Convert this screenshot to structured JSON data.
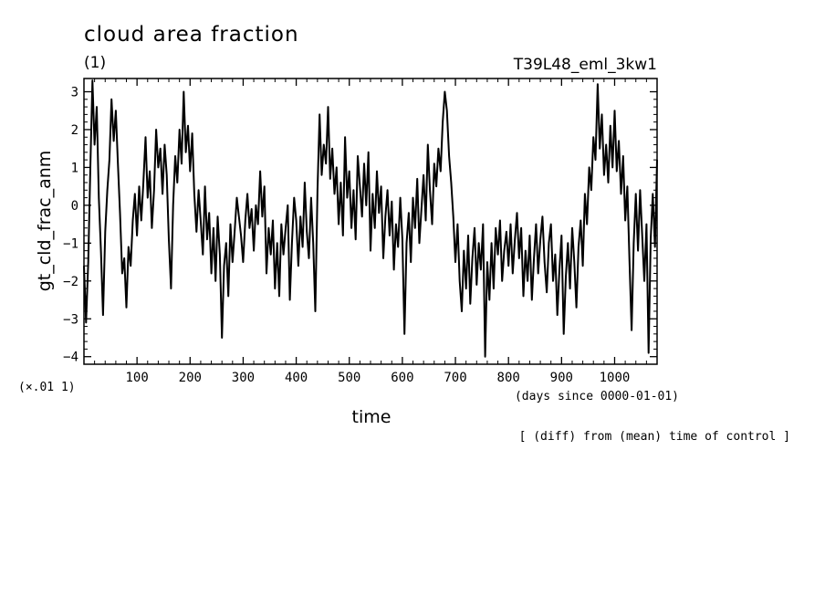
{
  "chart_data": {
    "type": "line",
    "title": "cloud area fraction",
    "subtitle_left": "(1)",
    "subtitle_right": "T39L48_eml_3kw1",
    "xlabel": "time",
    "xunits": "(days since 0000-01-01)",
    "ylabel": "gt_cld_frac_anm",
    "yscale_note": "(×.01 1)",
    "footnote": "[ (diff) from (mean) time of control ]",
    "xlim": [
      0,
      1080
    ],
    "ylim": [
      -4.2,
      3.35
    ],
    "xticks": [
      100,
      200,
      300,
      400,
      500,
      600,
      700,
      800,
      900,
      1000
    ],
    "yticks": [
      3,
      2,
      1,
      0,
      -1,
      -2,
      -3,
      -4
    ],
    "grid": false,
    "series": [
      {
        "color": "#000000",
        "points": [
          [
            0,
            -1.6
          ],
          [
            4,
            -3.1
          ],
          [
            8,
            -1.5
          ],
          [
            12,
            1.0
          ],
          [
            16,
            3.3
          ],
          [
            20,
            1.6
          ],
          [
            24,
            2.6
          ],
          [
            28,
            0.2
          ],
          [
            32,
            -1.2
          ],
          [
            36,
            -2.9
          ],
          [
            40,
            -0.7
          ],
          [
            44,
            0.4
          ],
          [
            48,
            1.2
          ],
          [
            52,
            2.8
          ],
          [
            56,
            1.7
          ],
          [
            60,
            2.5
          ],
          [
            64,
            1.1
          ],
          [
            68,
            -0.2
          ],
          [
            72,
            -1.8
          ],
          [
            76,
            -1.4
          ],
          [
            80,
            -2.7
          ],
          [
            84,
            -1.1
          ],
          [
            88,
            -1.6
          ],
          [
            92,
            -0.4
          ],
          [
            96,
            0.3
          ],
          [
            100,
            -0.8
          ],
          [
            104,
            0.5
          ],
          [
            108,
            -0.4
          ],
          [
            112,
            0.6
          ],
          [
            116,
            1.8
          ],
          [
            120,
            0.2
          ],
          [
            124,
            0.9
          ],
          [
            128,
            -0.6
          ],
          [
            132,
            0.4
          ],
          [
            136,
            2.0
          ],
          [
            140,
            1.0
          ],
          [
            144,
            1.5
          ],
          [
            148,
            0.3
          ],
          [
            152,
            1.6
          ],
          [
            156,
            0.8
          ],
          [
            160,
            -0.9
          ],
          [
            164,
            -2.2
          ],
          [
            168,
            0.0
          ],
          [
            172,
            1.3
          ],
          [
            176,
            0.6
          ],
          [
            180,
            2.0
          ],
          [
            184,
            1.1
          ],
          [
            188,
            3.0
          ],
          [
            192,
            1.4
          ],
          [
            196,
            2.1
          ],
          [
            200,
            0.9
          ],
          [
            204,
            1.9
          ],
          [
            208,
            0.3
          ],
          [
            212,
            -0.7
          ],
          [
            216,
            0.4
          ],
          [
            220,
            -0.4
          ],
          [
            224,
            -1.3
          ],
          [
            228,
            0.5
          ],
          [
            232,
            -0.9
          ],
          [
            236,
            -0.2
          ],
          [
            240,
            -1.8
          ],
          [
            244,
            -0.6
          ],
          [
            248,
            -2.0
          ],
          [
            252,
            -0.3
          ],
          [
            256,
            -1.3
          ],
          [
            260,
            -3.5
          ],
          [
            264,
            -1.6
          ],
          [
            268,
            -1.0
          ],
          [
            272,
            -2.4
          ],
          [
            276,
            -0.5
          ],
          [
            280,
            -1.5
          ],
          [
            284,
            -0.7
          ],
          [
            288,
            0.2
          ],
          [
            292,
            -0.3
          ],
          [
            296,
            -0.8
          ],
          [
            300,
            -1.5
          ],
          [
            304,
            -0.4
          ],
          [
            308,
            0.3
          ],
          [
            312,
            -0.6
          ],
          [
            316,
            -0.1
          ],
          [
            320,
            -1.2
          ],
          [
            324,
            0.0
          ],
          [
            328,
            -0.5
          ],
          [
            332,
            0.9
          ],
          [
            336,
            -0.3
          ],
          [
            340,
            0.5
          ],
          [
            344,
            -1.8
          ],
          [
            348,
            -0.6
          ],
          [
            352,
            -1.3
          ],
          [
            356,
            -0.4
          ],
          [
            360,
            -2.2
          ],
          [
            364,
            -1.0
          ],
          [
            368,
            -2.4
          ],
          [
            372,
            -0.5
          ],
          [
            376,
            -1.3
          ],
          [
            380,
            -0.6
          ],
          [
            384,
            0.0
          ],
          [
            388,
            -2.5
          ],
          [
            392,
            -1.0
          ],
          [
            396,
            0.2
          ],
          [
            400,
            -0.4
          ],
          [
            404,
            -1.6
          ],
          [
            408,
            -0.3
          ],
          [
            412,
            -1.1
          ],
          [
            416,
            0.6
          ],
          [
            420,
            -0.7
          ],
          [
            424,
            -1.4
          ],
          [
            428,
            0.2
          ],
          [
            432,
            -1.0
          ],
          [
            436,
            -2.8
          ],
          [
            440,
            0.4
          ],
          [
            444,
            2.4
          ],
          [
            448,
            0.8
          ],
          [
            452,
            1.6
          ],
          [
            456,
            1.1
          ],
          [
            460,
            2.6
          ],
          [
            464,
            0.7
          ],
          [
            468,
            1.5
          ],
          [
            472,
            0.3
          ],
          [
            476,
            1.0
          ],
          [
            480,
            -0.5
          ],
          [
            484,
            0.6
          ],
          [
            488,
            -0.8
          ],
          [
            492,
            1.8
          ],
          [
            496,
            0.2
          ],
          [
            500,
            0.9
          ],
          [
            504,
            -0.6
          ],
          [
            508,
            0.4
          ],
          [
            512,
            -0.9
          ],
          [
            516,
            1.3
          ],
          [
            520,
            0.5
          ],
          [
            524,
            -0.3
          ],
          [
            528,
            1.1
          ],
          [
            532,
            0.0
          ],
          [
            536,
            1.4
          ],
          [
            540,
            -1.2
          ],
          [
            544,
            0.3
          ],
          [
            548,
            -0.6
          ],
          [
            552,
            0.9
          ],
          [
            556,
            -0.2
          ],
          [
            560,
            0.5
          ],
          [
            564,
            -1.4
          ],
          [
            568,
            -0.3
          ],
          [
            572,
            0.4
          ],
          [
            576,
            -0.8
          ],
          [
            580,
            0.1
          ],
          [
            584,
            -1.7
          ],
          [
            588,
            -0.5
          ],
          [
            592,
            -1.1
          ],
          [
            596,
            0.2
          ],
          [
            600,
            -0.9
          ],
          [
            604,
            -3.4
          ],
          [
            608,
            -1.0
          ],
          [
            612,
            -0.2
          ],
          [
            616,
            -1.5
          ],
          [
            620,
            0.2
          ],
          [
            624,
            -0.6
          ],
          [
            628,
            0.7
          ],
          [
            632,
            -1.0
          ],
          [
            636,
            -0.1
          ],
          [
            640,
            0.8
          ],
          [
            644,
            -0.4
          ],
          [
            648,
            1.6
          ],
          [
            652,
            0.4
          ],
          [
            656,
            -0.5
          ],
          [
            660,
            1.1
          ],
          [
            664,
            0.5
          ],
          [
            668,
            1.5
          ],
          [
            672,
            0.9
          ],
          [
            676,
            2.2
          ],
          [
            680,
            3.0
          ],
          [
            684,
            2.5
          ],
          [
            688,
            1.3
          ],
          [
            692,
            0.6
          ],
          [
            696,
            -0.3
          ],
          [
            700,
            -1.5
          ],
          [
            704,
            -0.5
          ],
          [
            708,
            -2.0
          ],
          [
            712,
            -2.8
          ],
          [
            716,
            -1.2
          ],
          [
            720,
            -2.2
          ],
          [
            724,
            -0.8
          ],
          [
            728,
            -2.6
          ],
          [
            732,
            -1.4
          ],
          [
            736,
            -0.6
          ],
          [
            740,
            -2.1
          ],
          [
            744,
            -1.0
          ],
          [
            748,
            -1.7
          ],
          [
            752,
            -0.5
          ],
          [
            756,
            -4.0
          ],
          [
            760,
            -1.5
          ],
          [
            764,
            -2.5
          ],
          [
            768,
            -1.0
          ],
          [
            772,
            -2.2
          ],
          [
            776,
            -0.6
          ],
          [
            780,
            -1.3
          ],
          [
            784,
            -0.4
          ],
          [
            788,
            -2.0
          ],
          [
            792,
            -1.2
          ],
          [
            796,
            -0.7
          ],
          [
            800,
            -1.6
          ],
          [
            804,
            -0.5
          ],
          [
            808,
            -1.8
          ],
          [
            812,
            -0.9
          ],
          [
            816,
            -0.2
          ],
          [
            820,
            -1.4
          ],
          [
            824,
            -0.6
          ],
          [
            828,
            -2.4
          ],
          [
            832,
            -1.2
          ],
          [
            836,
            -2.0
          ],
          [
            840,
            -0.8
          ],
          [
            844,
            -2.5
          ],
          [
            848,
            -1.4
          ],
          [
            852,
            -0.5
          ],
          [
            856,
            -1.8
          ],
          [
            860,
            -0.9
          ],
          [
            864,
            -0.3
          ],
          [
            868,
            -1.5
          ],
          [
            872,
            -2.3
          ],
          [
            876,
            -1.0
          ],
          [
            880,
            -0.5
          ],
          [
            884,
            -2.0
          ],
          [
            888,
            -1.3
          ],
          [
            892,
            -2.9
          ],
          [
            896,
            -1.7
          ],
          [
            900,
            -0.8
          ],
          [
            904,
            -3.4
          ],
          [
            908,
            -1.9
          ],
          [
            912,
            -1.0
          ],
          [
            916,
            -2.2
          ],
          [
            920,
            -0.6
          ],
          [
            924,
            -1.5
          ],
          [
            928,
            -2.7
          ],
          [
            932,
            -1.1
          ],
          [
            936,
            -0.4
          ],
          [
            940,
            -1.6
          ],
          [
            944,
            0.3
          ],
          [
            948,
            -0.5
          ],
          [
            952,
            1.0
          ],
          [
            956,
            0.4
          ],
          [
            960,
            1.8
          ],
          [
            964,
            1.2
          ],
          [
            968,
            3.2
          ],
          [
            972,
            1.5
          ],
          [
            976,
            2.4
          ],
          [
            980,
            0.8
          ],
          [
            984,
            1.6
          ],
          [
            988,
            0.6
          ],
          [
            992,
            2.1
          ],
          [
            996,
            1.0
          ],
          [
            1000,
            2.5
          ],
          [
            1004,
            0.9
          ],
          [
            1008,
            1.7
          ],
          [
            1012,
            0.3
          ],
          [
            1016,
            1.3
          ],
          [
            1020,
            -0.4
          ],
          [
            1024,
            0.5
          ],
          [
            1028,
            -1.5
          ],
          [
            1032,
            -3.3
          ],
          [
            1036,
            -1.0
          ],
          [
            1040,
            0.3
          ],
          [
            1044,
            -1.2
          ],
          [
            1048,
            0.4
          ],
          [
            1052,
            -0.8
          ],
          [
            1056,
            -2.0
          ],
          [
            1060,
            -0.5
          ],
          [
            1064,
            -3.9
          ],
          [
            1068,
            -0.9
          ],
          [
            1072,
            0.3
          ],
          [
            1076,
            -1.1
          ],
          [
            1080,
            1.2
          ]
        ]
      }
    ]
  }
}
